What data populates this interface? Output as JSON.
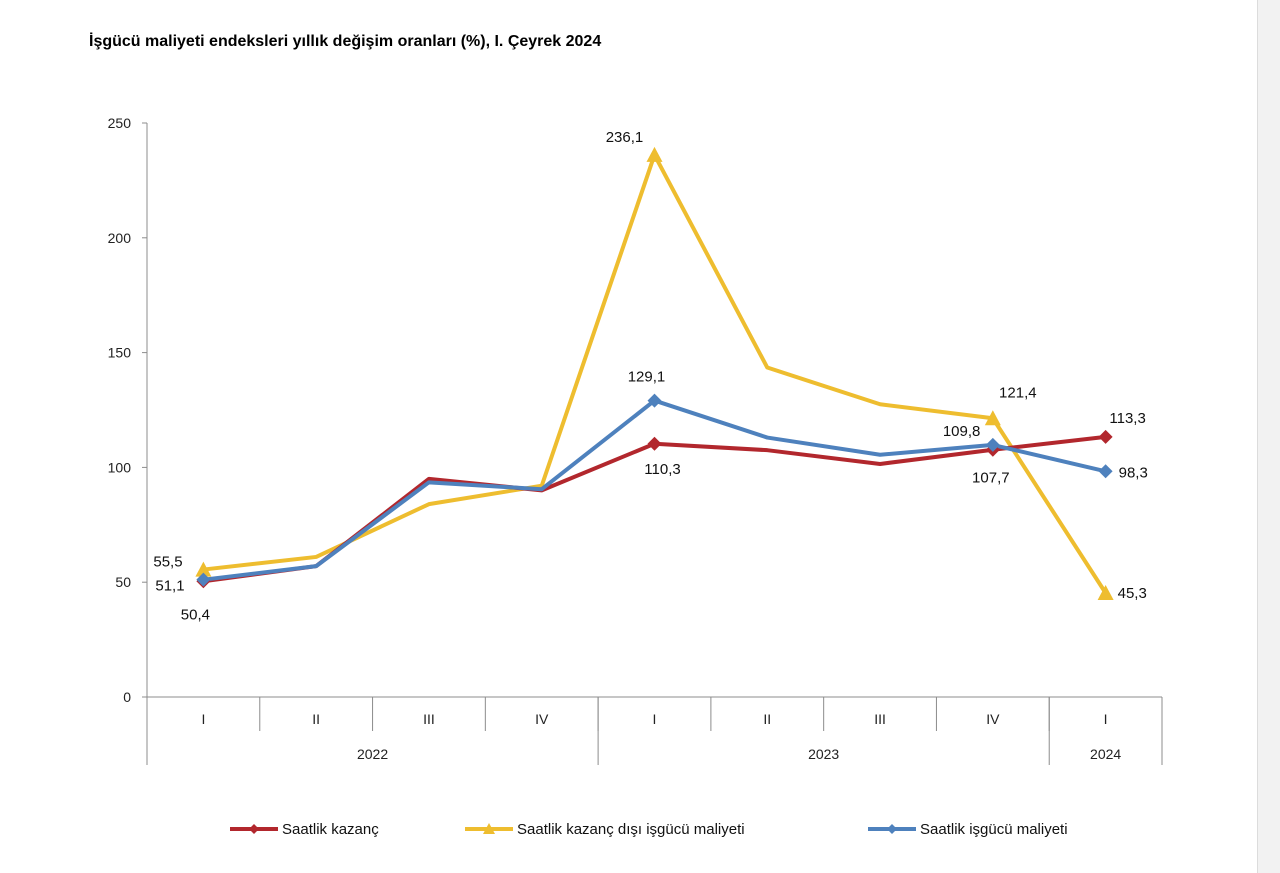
{
  "chart_data": {
    "type": "line",
    "title": "İşgücü maliyeti endeksleri yıllık değişim oranları (%), I. Çeyrek 2024",
    "xlabel": "",
    "ylabel": "",
    "ylim": [
      0,
      250
    ],
    "yticks": [
      "0",
      "50",
      "100",
      "150",
      "200",
      "250"
    ],
    "grid": false,
    "categories": [
      "I",
      "II",
      "III",
      "IV",
      "I",
      "II",
      "III",
      "IV",
      "I"
    ],
    "year_groups": [
      {
        "label": "2022",
        "span": 4
      },
      {
        "label": "2023",
        "span": 4
      },
      {
        "label": "2024",
        "span": 1
      }
    ],
    "legend_position": "bottom",
    "series": [
      {
        "name": "Saatlik kazanç",
        "color": "#b2272d",
        "marker": "diamond",
        "values": [
          50.4,
          57,
          95,
          90,
          110.3,
          107.5,
          101.5,
          107.7,
          113.3
        ],
        "labels": [
          "50,4",
          "",
          "",
          "",
          "110,3",
          "",
          "",
          "107,7",
          "113,3"
        ]
      },
      {
        "name": "Saatlik kazanç dışı işgücü maliyeti",
        "color": "#eebd2f",
        "marker": "triangle",
        "values": [
          55.5,
          61,
          84,
          92,
          236.1,
          143.5,
          127.5,
          121.4,
          45.3
        ],
        "labels": [
          "55,5",
          "",
          "",
          "",
          "236,1",
          "",
          "",
          "121,4",
          "45,3"
        ]
      },
      {
        "name": "Saatlik işgücü maliyeti",
        "color": "#4e81bd",
        "marker": "diamond",
        "values": [
          51.1,
          57,
          93.5,
          90.5,
          129.1,
          113,
          105.5,
          109.8,
          98.3
        ],
        "labels": [
          "51,1",
          "",
          "",
          "",
          "129,1",
          "",
          "",
          "109,8",
          "98,3"
        ]
      }
    ]
  }
}
